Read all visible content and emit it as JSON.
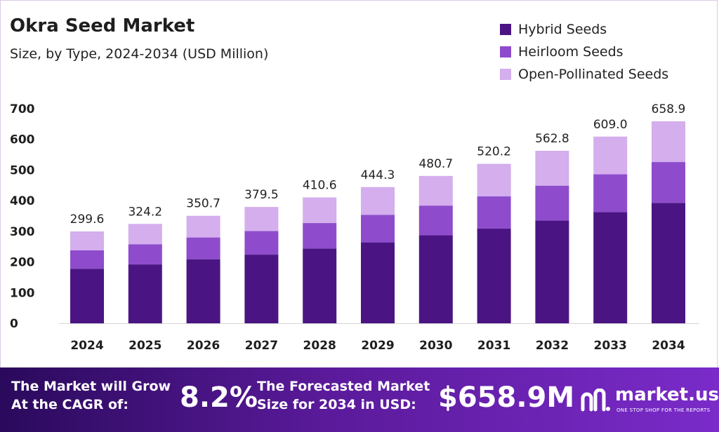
{
  "header": {
    "title": "Okra Seed Market",
    "subtitle": "Size, by Type, 2024-2034 (USD Million)"
  },
  "colors": {
    "hybrid": "#4a1583",
    "heirloom": "#8e4ccc",
    "open_pollinated": "#d4aeed",
    "banner_start": "#2a0a5c",
    "banner_end": "#7a2bc9"
  },
  "chart_data": {
    "type": "bar",
    "stacked": true,
    "title": "Okra Seed Market",
    "subtitle": "Size, by Type, 2024-2034 (USD Million)",
    "categories": [
      "2024",
      "2025",
      "2026",
      "2027",
      "2028",
      "2029",
      "2030",
      "2031",
      "2032",
      "2033",
      "2034"
    ],
    "series": [
      {
        "name": "Hybrid Seeds",
        "color": "#4a1583",
        "values": [
          178,
          192,
          209,
          224,
          244,
          264,
          287,
          309,
          335,
          363,
          393
        ]
      },
      {
        "name": "Heirloom Seeds",
        "color": "#8e4ccc",
        "values": [
          60,
          66,
          71,
          77,
          83,
          90,
          97,
          105,
          114,
          123,
          133
        ]
      },
      {
        "name": "Open-Pollinated Seeds",
        "color": "#d4aeed",
        "values": [
          61.6,
          66.2,
          70.7,
          78.5,
          83.6,
          90.3,
          96.7,
          106.2,
          113.8,
          123.0,
          132.9
        ]
      }
    ],
    "totals": [
      "299.6",
      "324.2",
      "350.7",
      "379.5",
      "410.6",
      "444.3",
      "480.7",
      "520.2",
      "562.8",
      "609.0",
      "658.9"
    ],
    "yticks": [
      "0",
      "100",
      "200",
      "300",
      "400",
      "500",
      "600",
      "700"
    ],
    "ylim": [
      0,
      700
    ],
    "xlabel": "",
    "ylabel": "",
    "grid": false,
    "legend_position": "top-right"
  },
  "banner": {
    "cagr_text": "The Market will Grow At the CAGR of:",
    "cagr_value": "8.2%",
    "forecast_text": "The Forecasted Market Size for 2034 in USD:",
    "forecast_value": "$658.9M",
    "brand_name": "market.us",
    "brand_tagline": "ONE STOP SHOP FOR THE REPORTS"
  }
}
